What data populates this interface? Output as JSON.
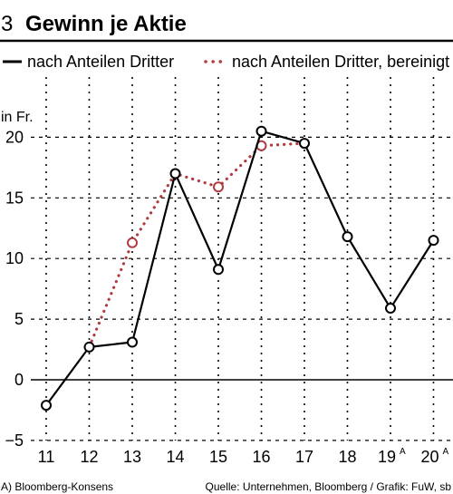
{
  "header": {
    "number": "3",
    "title": "Gewinn je Aktie"
  },
  "legend": {
    "reported": "nach Anteilen Dritter",
    "adjusted": "nach Anteilen Dritter, bereinigt"
  },
  "footer": {
    "note": "A) Bloomberg-Konsens",
    "source": "Quelle: Unternehmen, Bloomberg / Grafik: FuW, sb"
  },
  "colors": {
    "reported": "#000000",
    "adjusted": "#b03a3e",
    "grid": "#000000"
  },
  "chart_data": {
    "type": "line",
    "title": "Gewinn je Aktie",
    "ylabel": "in Fr.",
    "xlabel": "",
    "x": [
      "11",
      "12",
      "13",
      "14",
      "15",
      "16",
      "17",
      "18",
      "19",
      "20"
    ],
    "x_superscripts": [
      "",
      "",
      "",
      "",
      "",
      "",
      "",
      "",
      "A",
      "A"
    ],
    "ylim": [
      -5,
      25
    ],
    "yticks": [
      -5,
      0,
      5,
      10,
      15,
      20
    ],
    "grid": "dotted vertical, dashed horizontal",
    "legend_position": "top",
    "series": [
      {
        "name": "nach Anteilen Dritter",
        "style": "solid",
        "values": [
          -2.1,
          2.7,
          3.1,
          17.0,
          9.1,
          20.5,
          19.5,
          11.8,
          5.9,
          11.5
        ]
      },
      {
        "name": "nach Anteilen Dritter, bereinigt",
        "style": "dotted",
        "values": [
          null,
          2.7,
          11.3,
          17.0,
          15.9,
          19.3,
          19.5,
          null,
          null,
          null
        ]
      }
    ]
  }
}
